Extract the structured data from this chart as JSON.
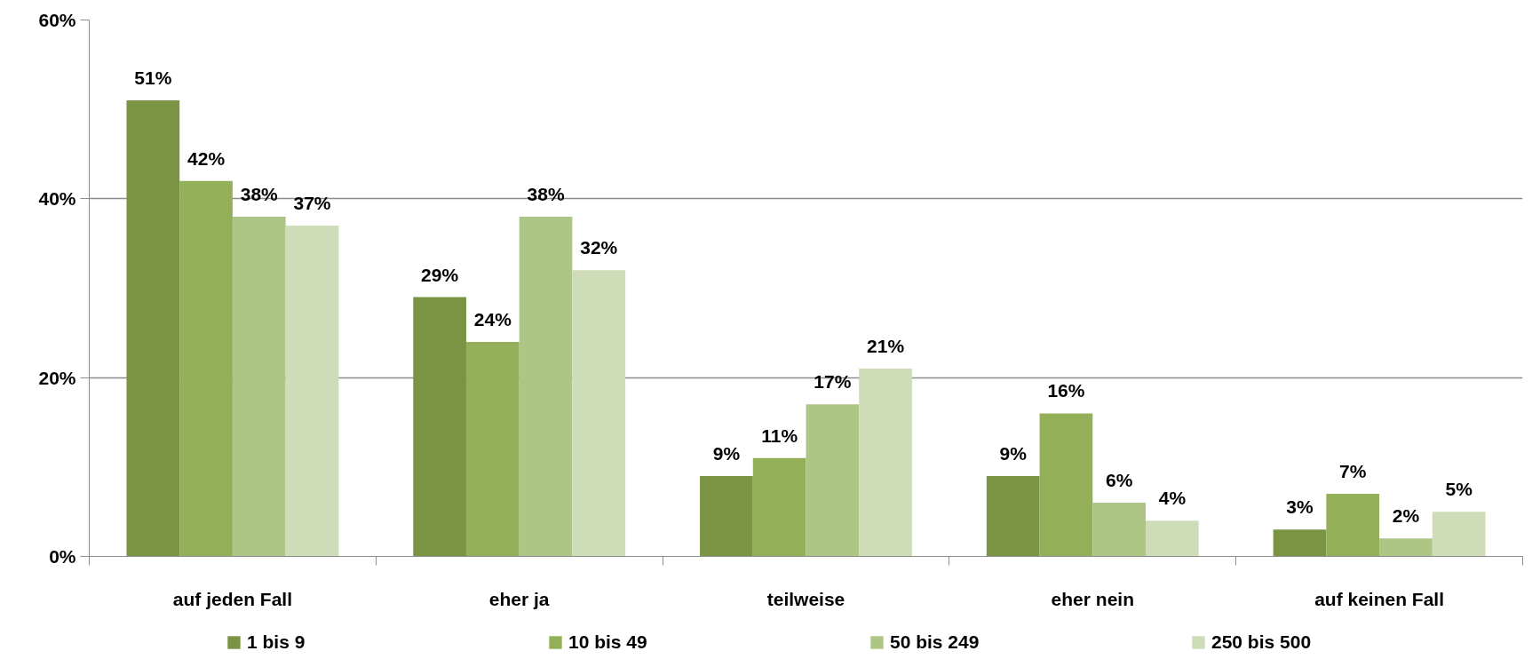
{
  "chart_data": {
    "type": "bar",
    "categories": [
      "auf jeden Fall",
      "eher ja",
      "teilweise",
      "eher nein",
      "auf keinen Fall"
    ],
    "series": [
      {
        "name": "1 bis 9",
        "color": "#7a9444",
        "values": [
          51,
          29,
          9,
          9,
          3
        ],
        "value_labels": [
          "51%",
          "29%",
          "9%",
          "9%",
          "3%"
        ]
      },
      {
        "name": "10 bis 49",
        "color": "#93b058",
        "values": [
          42,
          24,
          11,
          16,
          7
        ],
        "value_labels": [
          "42%",
          "24%",
          "11%",
          "16%",
          "7%"
        ]
      },
      {
        "name": "50 bis 249",
        "color": "#adc585",
        "values": [
          38,
          38,
          17,
          6,
          2
        ],
        "value_labels": [
          "38%",
          "38%",
          "17%",
          "6%",
          "2%"
        ]
      },
      {
        "name": "250 bis 500",
        "color": "#cedcb7",
        "values": [
          37,
          32,
          21,
          4,
          5
        ],
        "value_labels": [
          "37%",
          "32%",
          "21%",
          "4%",
          "5%"
        ]
      }
    ],
    "ylim": [
      0,
      60
    ],
    "yticks": [
      {
        "value": 0,
        "label": "0%"
      },
      {
        "value": 20,
        "label": "20%"
      },
      {
        "value": 40,
        "label": "40%"
      },
      {
        "value": 60,
        "label": "60%"
      }
    ],
    "grid": "y",
    "legend": "bottom"
  }
}
